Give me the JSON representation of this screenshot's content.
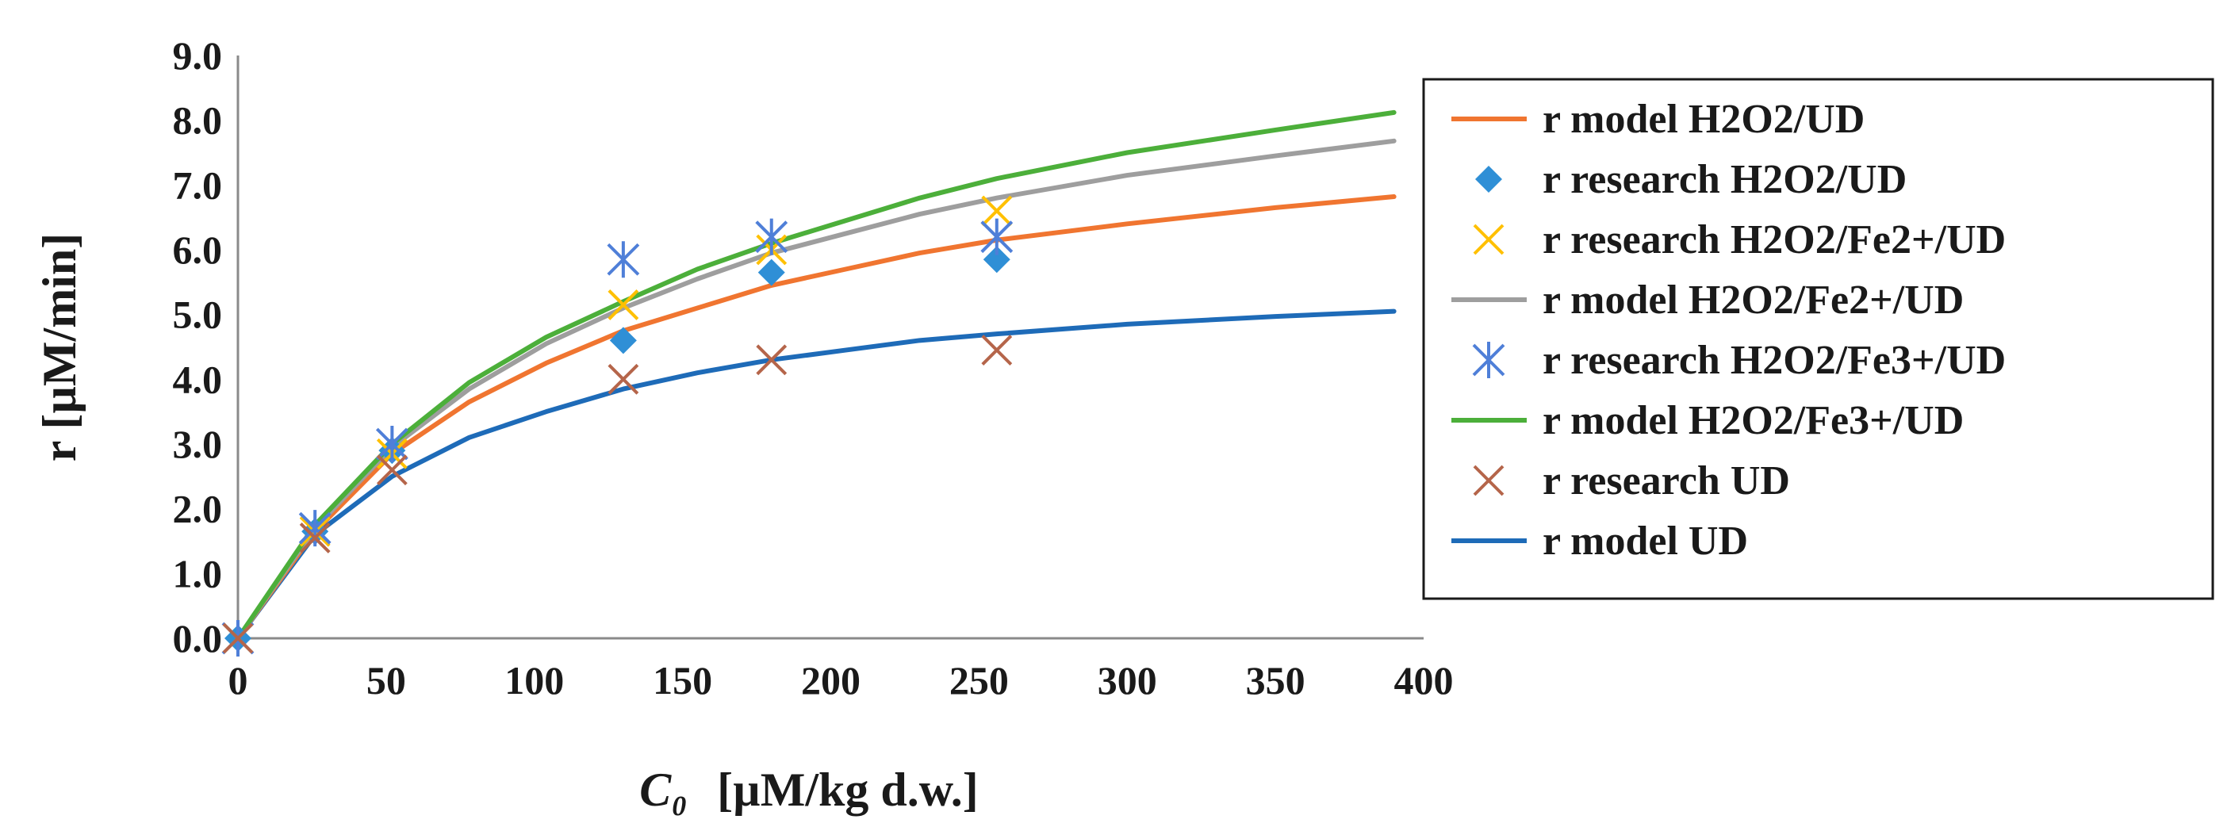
{
  "chart_data": {
    "type": "line",
    "title": "",
    "xlabel": "[µM/kg d.w.]",
    "xlabel_symbol": "C₀",
    "ylabel": "r [µM/min]",
    "xlim": [
      0,
      400
    ],
    "ylim": [
      0,
      9
    ],
    "xticks": [
      "0",
      "50",
      "100",
      "150",
      "200",
      "250",
      "300",
      "350",
      "400"
    ],
    "yticks": [
      "0.0",
      "1.0",
      "2.0",
      "3.0",
      "4.0",
      "5.0",
      "6.0",
      "7.0",
      "8.0",
      "9.0"
    ],
    "grid": false,
    "legend_position": "right",
    "series": [
      {
        "name": "r model H2O2/UD",
        "kind": "line",
        "color": "#f07530",
        "x": [
          0,
          26,
          52,
          78,
          104,
          130,
          155,
          180,
          205,
          230,
          256,
          300,
          350,
          390
        ],
        "y": [
          0,
          1.65,
          2.85,
          3.65,
          4.25,
          4.75,
          5.1,
          5.45,
          5.7,
          5.95,
          6.15,
          6.4,
          6.65,
          6.82
        ]
      },
      {
        "name": "r research H2O2/UD",
        "kind": "diamond",
        "color": "#2f8fd6",
        "x": [
          0,
          26,
          52,
          130,
          180,
          256
        ],
        "y": [
          0,
          1.65,
          2.9,
          4.6,
          5.65,
          5.85
        ]
      },
      {
        "name": "r research H2O2/Fe2+/UD",
        "kind": "x",
        "color": "#ffc000",
        "x": [
          0,
          26,
          52,
          130,
          180,
          256
        ],
        "y": [
          0,
          1.65,
          2.85,
          5.15,
          6.0,
          6.6
        ]
      },
      {
        "name": "r model H2O2/Fe2+/UD",
        "kind": "line",
        "color": "#9e9e9e",
        "x": [
          0,
          26,
          52,
          78,
          104,
          130,
          155,
          180,
          205,
          230,
          256,
          300,
          350,
          390
        ],
        "y": [
          0,
          1.7,
          2.95,
          3.85,
          4.55,
          5.1,
          5.55,
          5.95,
          6.25,
          6.55,
          6.8,
          7.15,
          7.45,
          7.68
        ]
      },
      {
        "name": "r research H2O2/Fe3+/UD",
        "kind": "star",
        "color": "#4f7fd8",
        "x": [
          0,
          26,
          52,
          130,
          180,
          256
        ],
        "y": [
          0,
          1.7,
          3.0,
          5.85,
          6.2,
          6.2
        ]
      },
      {
        "name": "r model H2O2/Fe3+/UD",
        "kind": "line",
        "color": "#4caf3a",
        "x": [
          0,
          26,
          52,
          78,
          104,
          130,
          155,
          180,
          205,
          230,
          256,
          300,
          350,
          390
        ],
        "y": [
          0,
          1.75,
          3.0,
          3.95,
          4.65,
          5.2,
          5.7,
          6.1,
          6.45,
          6.8,
          7.1,
          7.5,
          7.85,
          8.12
        ]
      },
      {
        "name": "r research UD",
        "kind": "x",
        "color": "#b5654a",
        "x": [
          0,
          26,
          52,
          130,
          180,
          256
        ],
        "y": [
          0,
          1.55,
          2.6,
          4.0,
          4.3,
          4.45
        ]
      },
      {
        "name": "r model UD",
        "kind": "line",
        "color": "#1e6bb8",
        "x": [
          0,
          26,
          52,
          78,
          104,
          130,
          155,
          180,
          205,
          230,
          256,
          300,
          350,
          390
        ],
        "y": [
          0,
          1.6,
          2.5,
          3.1,
          3.5,
          3.85,
          4.1,
          4.3,
          4.45,
          4.6,
          4.7,
          4.85,
          4.97,
          5.05
        ]
      }
    ]
  }
}
